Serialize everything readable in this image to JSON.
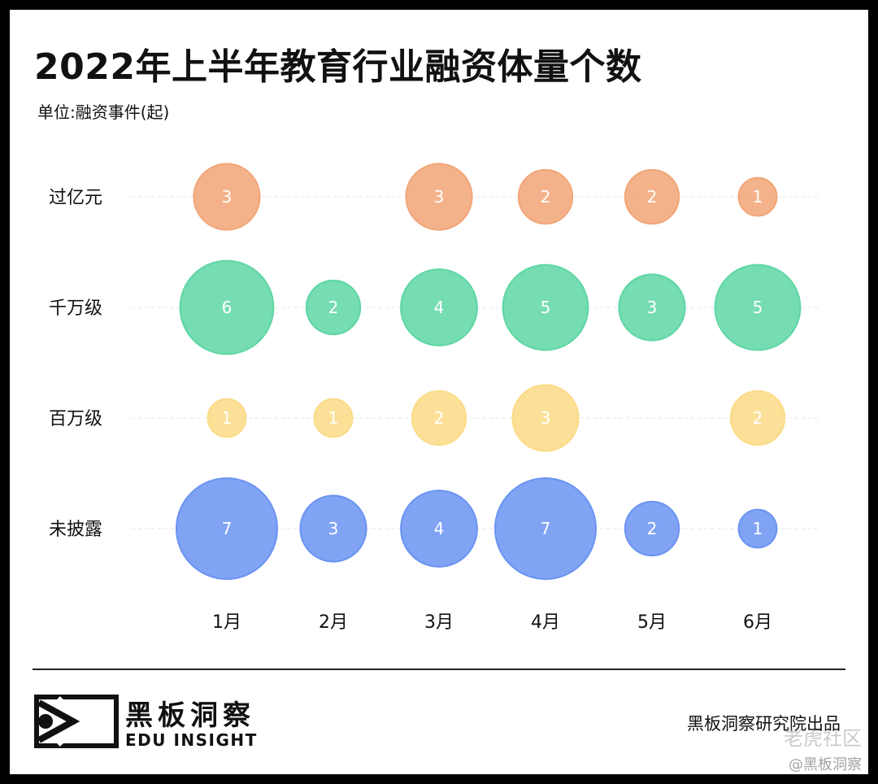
{
  "title": "2022年上半年教育行业融资体量个数",
  "unit_label": "单位:融资事件(起)",
  "chart_data": {
    "type": "bubble",
    "categories": [
      "1月",
      "2月",
      "3月",
      "4月",
      "5月",
      "6月"
    ],
    "series": [
      {
        "name": "过亿元",
        "color": "#F2A577",
        "values": [
          3,
          null,
          3,
          2,
          2,
          1
        ]
      },
      {
        "name": "千万级",
        "color": "#5ED6A4",
        "values": [
          6,
          2,
          4,
          5,
          3,
          5
        ]
      },
      {
        "name": "百万级",
        "color": "#FBDB86",
        "values": [
          1,
          1,
          2,
          3,
          null,
          2
        ]
      },
      {
        "name": "未披露",
        "color": "#6A93F2",
        "values": [
          7,
          3,
          4,
          7,
          2,
          1
        ]
      }
    ],
    "grid": true
  },
  "footer": {
    "brand_cn": "黑板洞察",
    "brand_en": "EDU INSIGHT",
    "credit": "黑板洞察研究院出品",
    "watermark_1": "老虎社区",
    "watermark_2": "@黑板洞察"
  }
}
